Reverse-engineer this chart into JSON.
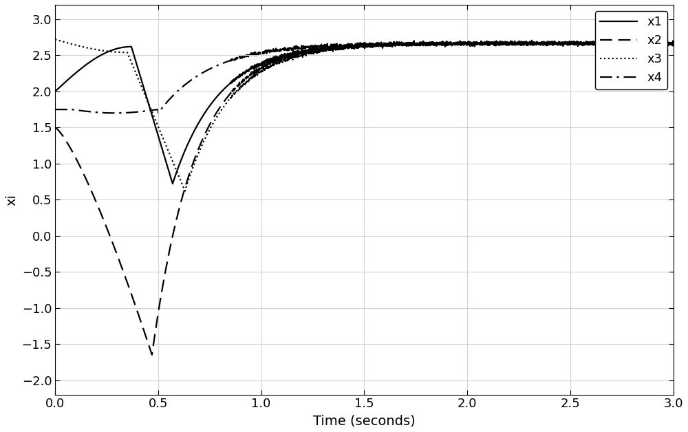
{
  "title": "",
  "xlabel": "Time (seconds)",
  "ylabel": "xi",
  "xlim": [
    0,
    3
  ],
  "ylim": [
    -2.2,
    3.2
  ],
  "xticks": [
    0,
    0.5,
    1,
    1.5,
    2,
    2.5,
    3
  ],
  "yticks": [
    -2,
    -1.5,
    -1,
    -0.5,
    0,
    0.5,
    1,
    1.5,
    2,
    2.5,
    3
  ],
  "convergence_value": 2.666,
  "background_color": "#ffffff",
  "grid_color": "#d3d3d3",
  "font_size": 14,
  "linewidth": 1.6,
  "legend_labels": [
    "x1",
    "x2",
    "x3",
    "x4"
  ]
}
